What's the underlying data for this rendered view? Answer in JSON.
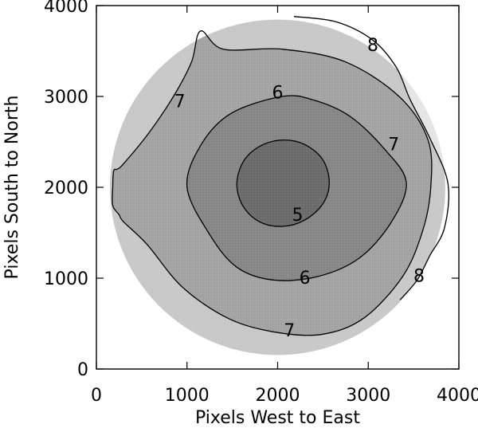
{
  "chart_data": {
    "type": "contour",
    "title": "",
    "xlabel": "Pixels West to East",
    "ylabel": "Pixels South to North",
    "xlim": [
      0,
      4000
    ],
    "ylim": [
      0,
      4000
    ],
    "xticks": [
      0,
      1000,
      2000,
      3000,
      4000
    ],
    "yticks": [
      0,
      1000,
      2000,
      3000,
      4000
    ],
    "grid": false,
    "detector_disk": {
      "center": [
        2000,
        2000
      ],
      "radius": 1850
    },
    "contour_levels": [
      5,
      6,
      7,
      8
    ],
    "fill_colors": {
      "outside_8": "#e4e4e4",
      "8_to_7": "#c6c6c6",
      "7_to_6": "#a0a0a0",
      "6_to_5": "#828282",
      "inside_5": "#666666"
    },
    "contours": [
      {
        "level": 5,
        "points": [
          [
            2050,
            2520
          ],
          [
            2300,
            2470
          ],
          [
            2500,
            2300
          ],
          [
            2570,
            2050
          ],
          [
            2500,
            1820
          ],
          [
            2300,
            1640
          ],
          [
            2050,
            1570
          ],
          [
            1800,
            1620
          ],
          [
            1620,
            1790
          ],
          [
            1550,
            2030
          ],
          [
            1620,
            2280
          ],
          [
            1800,
            2450
          ]
        ]
      },
      {
        "level": 6,
        "points": [
          [
            2050,
            3000
          ],
          [
            2400,
            2960
          ],
          [
            2800,
            2780
          ],
          [
            3180,
            2420
          ],
          [
            3420,
            2050
          ],
          [
            3250,
            1610
          ],
          [
            2900,
            1220
          ],
          [
            2450,
            1020
          ],
          [
            1950,
            980
          ],
          [
            1550,
            1120
          ],
          [
            1250,
            1480
          ],
          [
            1000,
            2000
          ],
          [
            1150,
            2460
          ],
          [
            1480,
            2810
          ]
        ]
      },
      {
        "level": 7,
        "points": [
          [
            1400,
            3520
          ],
          [
            2050,
            3520
          ],
          [
            2750,
            3380
          ],
          [
            3350,
            2990
          ],
          [
            3660,
            2520
          ],
          [
            3690,
            2000
          ],
          [
            3600,
            1520
          ],
          [
            3380,
            1020
          ],
          [
            2950,
            560
          ],
          [
            2480,
            380
          ],
          [
            1950,
            410
          ],
          [
            1450,
            560
          ],
          [
            950,
            900
          ],
          [
            560,
            1370
          ],
          [
            300,
            1620
          ],
          [
            250,
            1700
          ],
          [
            180,
            1800
          ],
          [
            180,
            2000
          ],
          [
            190,
            2180
          ],
          [
            230,
            2200
          ],
          [
            300,
            2260
          ],
          [
            580,
            2600
          ],
          [
            850,
            3000
          ],
          [
            1050,
            3380
          ],
          [
            1150,
            3720
          ]
        ],
        "closed": true
      },
      {
        "level": 8,
        "points": [
          [
            2180,
            3880
          ],
          [
            2650,
            3820
          ],
          [
            3050,
            3620
          ],
          [
            3310,
            3320
          ],
          [
            3460,
            2970
          ],
          [
            3690,
            2520
          ],
          [
            3880,
            2040
          ],
          [
            3840,
            1550
          ],
          [
            3680,
            1250
          ],
          [
            3540,
            980
          ],
          [
            3350,
            760
          ]
        ],
        "closed": false
      }
    ],
    "contour_labels": [
      {
        "text": "5",
        "at": [
          2220,
          1700
        ]
      },
      {
        "text": "6",
        "at": [
          2000,
          3050
        ]
      },
      {
        "text": "6",
        "at": [
          2300,
          1010
        ]
      },
      {
        "text": "7",
        "at": [
          920,
          2950
        ]
      },
      {
        "text": "7",
        "at": [
          3280,
          2480
        ]
      },
      {
        "text": "7",
        "at": [
          2130,
          430
        ]
      },
      {
        "text": "8",
        "at": [
          3050,
          3570
        ]
      },
      {
        "text": "8",
        "at": [
          3560,
          1030
        ]
      }
    ]
  }
}
